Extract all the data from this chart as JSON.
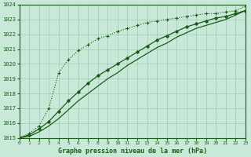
{
  "title": "Graphe pression niveau de la mer (hPa)",
  "x_hours": [
    0,
    1,
    2,
    3,
    4,
    5,
    6,
    7,
    8,
    9,
    10,
    11,
    12,
    13,
    14,
    15,
    16,
    17,
    18,
    19,
    20,
    21,
    22,
    23
  ],
  "line_fast": [
    1015.0,
    1015.3,
    1015.8,
    1017.0,
    1019.4,
    1020.3,
    1020.9,
    1021.3,
    1021.7,
    1021.9,
    1022.2,
    1022.4,
    1022.6,
    1022.8,
    1022.9,
    1023.0,
    1023.1,
    1023.2,
    1023.3,
    1023.4,
    1023.4,
    1023.5,
    1023.6,
    1023.9
  ],
  "line_mid": [
    1015.0,
    1015.2,
    1015.6,
    1016.1,
    1016.8,
    1017.5,
    1018.1,
    1018.7,
    1019.2,
    1019.6,
    1020.0,
    1020.4,
    1020.8,
    1021.2,
    1021.6,
    1021.9,
    1022.2,
    1022.5,
    1022.7,
    1022.9,
    1023.1,
    1023.2,
    1023.4,
    1023.6
  ],
  "line_slow": [
    1015.0,
    1015.1,
    1015.4,
    1015.8,
    1016.3,
    1016.9,
    1017.5,
    1018.0,
    1018.5,
    1019.0,
    1019.4,
    1019.9,
    1020.3,
    1020.7,
    1021.1,
    1021.4,
    1021.8,
    1022.1,
    1022.4,
    1022.6,
    1022.8,
    1023.0,
    1023.3,
    1023.6
  ],
  "ylim": [
    1015,
    1024
  ],
  "xlim": [
    0,
    23
  ],
  "bg_color": "#c8e8d8",
  "grid_color": "#a0c8b8",
  "line_color": "#1a5c18",
  "title_color": "#1a5c18",
  "tick_color": "#1a5c18",
  "yticks": [
    1015,
    1016,
    1017,
    1018,
    1019,
    1020,
    1021,
    1022,
    1023,
    1024
  ],
  "xticks": [
    0,
    1,
    2,
    3,
    4,
    5,
    6,
    7,
    8,
    9,
    10,
    11,
    12,
    13,
    14,
    15,
    16,
    17,
    18,
    19,
    20,
    21,
    22,
    23
  ]
}
